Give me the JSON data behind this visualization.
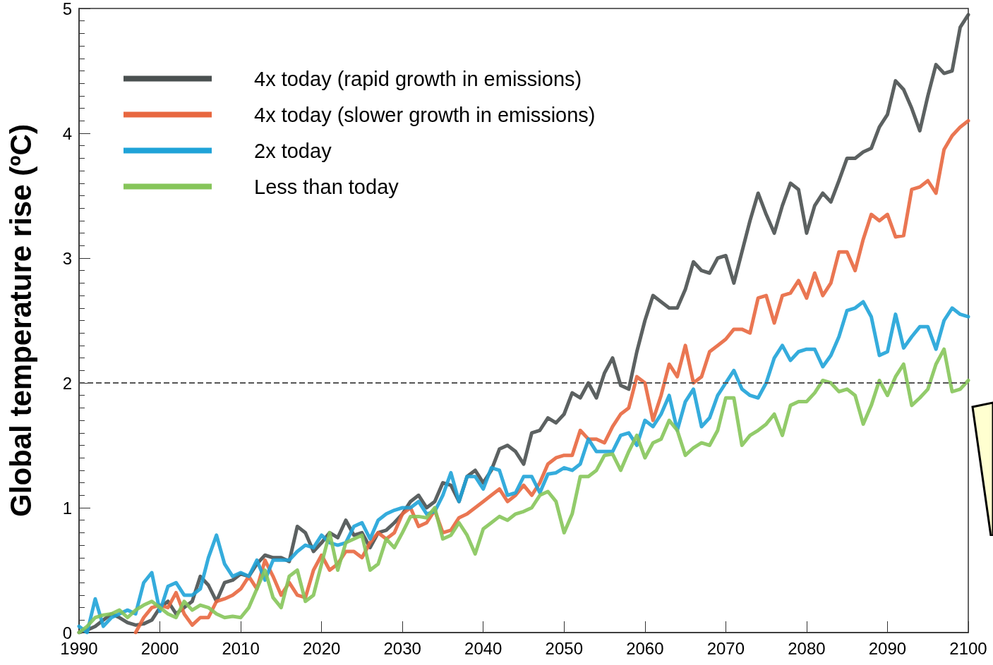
{
  "chart_data": {
    "type": "line",
    "ylabel": "Global temperature rise (ºC)",
    "x": [
      1990,
      1991,
      1992,
      1993,
      1994,
      1995,
      1996,
      1997,
      1998,
      1999,
      2000,
      2001,
      2002,
      2003,
      2004,
      2005,
      2006,
      2007,
      2008,
      2009,
      2010,
      2011,
      2012,
      2013,
      2014,
      2015,
      2016,
      2017,
      2018,
      2019,
      2020,
      2021,
      2022,
      2023,
      2024,
      2025,
      2026,
      2027,
      2028,
      2029,
      2030,
      2031,
      2032,
      2033,
      2034,
      2035,
      2036,
      2037,
      2038,
      2039,
      2040,
      2041,
      2042,
      2043,
      2044,
      2045,
      2046,
      2047,
      2048,
      2049,
      2050,
      2051,
      2052,
      2053,
      2054,
      2055,
      2056,
      2057,
      2058,
      2059,
      2060,
      2061,
      2062,
      2063,
      2064,
      2065,
      2066,
      2067,
      2068,
      2069,
      2070,
      2071,
      2072,
      2073,
      2074,
      2075,
      2076,
      2077,
      2078,
      2079,
      2080,
      2081,
      2082,
      2083,
      2084,
      2085,
      2086,
      2087,
      2088,
      2089,
      2090,
      2091,
      2092,
      2093,
      2094,
      2095,
      2096,
      2097,
      2098,
      2099,
      2100
    ],
    "series": [
      {
        "name": "4x today (rapid growth in emissions)",
        "color": "#4a5050",
        "values": [
          0.0,
          0.02,
          0.05,
          0.1,
          0.15,
          0.12,
          0.08,
          0.06,
          0.07,
          0.1,
          0.2,
          0.25,
          0.15,
          0.2,
          0.25,
          0.45,
          0.38,
          0.25,
          0.4,
          0.42,
          0.47,
          0.45,
          0.55,
          0.62,
          0.6,
          0.6,
          0.57,
          0.85,
          0.8,
          0.65,
          0.72,
          0.8,
          0.76,
          0.9,
          0.78,
          0.8,
          0.68,
          0.8,
          0.82,
          0.88,
          0.95,
          1.05,
          1.1,
          1.0,
          1.05,
          1.2,
          1.18,
          1.05,
          1.25,
          1.3,
          1.2,
          1.3,
          1.47,
          1.5,
          1.45,
          1.35,
          1.6,
          1.62,
          1.72,
          1.68,
          1.75,
          1.92,
          1.88,
          2.0,
          1.88,
          2.08,
          2.2,
          1.98,
          1.95,
          2.25,
          2.5,
          2.7,
          2.65,
          2.6,
          2.6,
          2.75,
          2.97,
          2.9,
          2.88,
          3.0,
          3.02,
          2.8,
          3.05,
          3.3,
          3.52,
          3.35,
          3.2,
          3.42,
          3.6,
          3.55,
          3.2,
          3.42,
          3.52,
          3.45,
          3.62,
          3.8,
          3.8,
          3.85,
          3.88,
          4.05,
          4.15,
          4.42,
          4.35,
          4.2,
          4.02,
          4.3,
          4.55,
          4.48,
          4.5,
          4.85,
          4.95
        ]
      },
      {
        "name": "4x today (slower growth in emissions)",
        "color": "#e8673f",
        "values": [
          null,
          null,
          null,
          null,
          null,
          null,
          null,
          0.0,
          0.12,
          0.2,
          0.22,
          0.2,
          0.32,
          0.15,
          0.06,
          0.12,
          0.12,
          0.25,
          0.27,
          0.3,
          0.35,
          0.45,
          0.35,
          0.58,
          0.45,
          0.3,
          0.4,
          0.3,
          0.28,
          0.5,
          0.62,
          0.5,
          0.55,
          0.65,
          0.65,
          0.6,
          0.72,
          0.8,
          0.75,
          0.8,
          0.95,
          1.0,
          0.85,
          0.88,
          0.98,
          0.8,
          0.82,
          0.92,
          0.95,
          1.0,
          1.05,
          1.1,
          1.15,
          1.05,
          1.1,
          1.18,
          1.1,
          1.2,
          1.35,
          1.4,
          1.42,
          1.42,
          1.62,
          1.55,
          1.55,
          1.52,
          1.65,
          1.75,
          1.8,
          2.05,
          2.0,
          1.7,
          1.9,
          2.15,
          2.05,
          2.3,
          2.0,
          2.05,
          2.25,
          2.3,
          2.35,
          2.43,
          2.43,
          2.4,
          2.68,
          2.7,
          2.48,
          2.7,
          2.72,
          2.82,
          2.68,
          2.88,
          2.7,
          2.8,
          3.05,
          3.05,
          2.9,
          3.15,
          3.35,
          3.3,
          3.35,
          3.17,
          3.18,
          3.55,
          3.57,
          3.62,
          3.52,
          3.87,
          3.98,
          4.05,
          4.1
        ]
      },
      {
        "name": "2x today",
        "color": "#1fa3d8",
        "values": [
          0.05,
          0.0,
          0.27,
          0.05,
          0.12,
          0.15,
          0.18,
          0.15,
          0.4,
          0.48,
          0.17,
          0.37,
          0.4,
          0.3,
          0.3,
          0.35,
          0.6,
          0.78,
          0.55,
          0.45,
          0.48,
          0.45,
          0.58,
          0.42,
          0.58,
          0.58,
          0.58,
          0.65,
          0.7,
          0.68,
          0.78,
          0.72,
          0.7,
          0.72,
          0.85,
          0.88,
          0.75,
          0.9,
          0.95,
          0.98,
          1.0,
          1.0,
          1.05,
          0.95,
          0.97,
          1.1,
          1.28,
          1.05,
          1.25,
          1.25,
          1.15,
          1.32,
          1.3,
          1.1,
          1.12,
          1.25,
          1.25,
          1.12,
          1.27,
          1.28,
          1.32,
          1.3,
          1.35,
          1.55,
          1.45,
          1.45,
          1.45,
          1.58,
          1.6,
          1.5,
          1.7,
          1.65,
          1.75,
          1.9,
          1.62,
          1.85,
          1.95,
          1.65,
          1.72,
          1.9,
          2.0,
          2.1,
          1.95,
          1.9,
          1.88,
          2.0,
          2.2,
          2.3,
          2.18,
          2.25,
          2.27,
          2.27,
          2.13,
          2.22,
          2.37,
          2.58,
          2.6,
          2.65,
          2.53,
          2.22,
          2.25,
          2.55,
          2.28,
          2.37,
          2.45,
          2.45,
          2.27,
          2.5,
          2.6,
          2.55,
          2.53
        ]
      },
      {
        "name": "Less than today",
        "color": "#86c55a",
        "values": [
          0.0,
          0.05,
          0.12,
          0.14,
          0.15,
          0.18,
          0.12,
          0.18,
          0.22,
          0.25,
          0.2,
          0.15,
          0.12,
          0.25,
          0.18,
          0.22,
          0.2,
          0.15,
          0.12,
          0.13,
          0.12,
          0.2,
          0.35,
          0.5,
          0.28,
          0.2,
          0.45,
          0.5,
          0.25,
          0.3,
          0.55,
          0.8,
          0.5,
          0.72,
          0.75,
          0.78,
          0.5,
          0.55,
          0.75,
          0.68,
          0.8,
          0.93,
          0.93,
          0.92,
          1.0,
          0.75,
          0.78,
          0.88,
          0.78,
          0.63,
          0.83,
          0.88,
          0.93,
          0.9,
          0.95,
          0.97,
          1.0,
          1.1,
          1.13,
          1.05,
          0.8,
          0.95,
          1.25,
          1.25,
          1.3,
          1.42,
          1.43,
          1.3,
          1.45,
          1.58,
          1.4,
          1.52,
          1.55,
          1.7,
          1.62,
          1.42,
          1.48,
          1.52,
          1.5,
          1.62,
          1.88,
          1.88,
          1.5,
          1.58,
          1.62,
          1.67,
          1.75,
          1.58,
          1.82,
          1.85,
          1.85,
          1.92,
          2.02,
          2.0,
          1.93,
          1.95,
          1.9,
          1.67,
          1.82,
          2.02,
          1.9,
          2.05,
          2.15,
          1.82,
          1.88,
          1.95,
          2.15,
          2.27,
          1.93,
          1.95,
          2.02
        ]
      }
    ],
    "xlim": [
      1990,
      2100
    ],
    "xticks": [
      1990,
      2000,
      2010,
      2020,
      2030,
      2040,
      2050,
      2060,
      2070,
      2080,
      2090,
      2100
    ],
    "ylim": [
      0,
      5
    ],
    "yticks": [
      0,
      1,
      2,
      3,
      4,
      5
    ],
    "ref_lines": [
      {
        "axis": "y",
        "value": 2,
        "color": "#555555",
        "line_style": "dashed"
      }
    ],
    "legend": "top left",
    "marker": "none",
    "line_style": "solid",
    "grid": false
  }
}
